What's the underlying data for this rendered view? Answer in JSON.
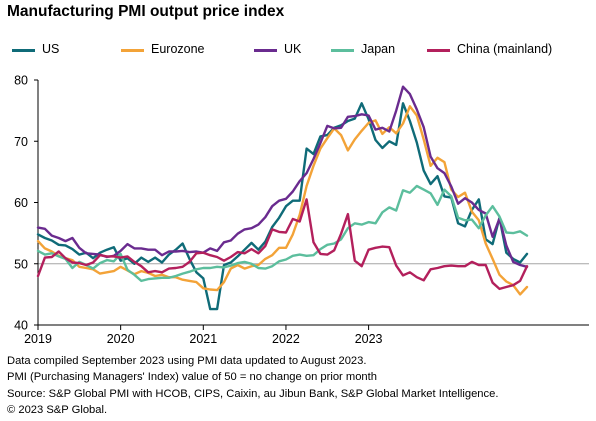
{
  "title": "Manufacturing PMI output price index",
  "notes": [
    "Data compiled September 2023 using PMI data updated to August 2023.",
    "PMI (Purchasing Managers' Index) value of 50 = no change on prior month",
    "Source: S&P Global PMI with HCOB, CIPS, Caixin, au Jibun Bank, S&P Global Market Intelligence.",
    "© 2023 S&P Global."
  ],
  "chart_data": {
    "type": "line",
    "title": "Manufacturing PMI output price index",
    "ylim": [
      40,
      80
    ],
    "yticks": [
      "40",
      "50",
      "60",
      "70",
      "80"
    ],
    "x_start": "2019-01",
    "xticks": [
      "2019",
      "2020",
      "2021",
      "2022",
      "2023"
    ],
    "reference_line": 50,
    "grid": false,
    "legend_position": "top",
    "series": [
      {
        "name": "US",
        "color": "#0f6b78",
        "values": [
          54.8,
          54.2,
          53.8,
          53.1,
          53.0,
          52.4,
          51.5,
          51.8,
          50.9,
          51.8,
          52.3,
          52.7,
          50.5,
          50.9,
          50.0,
          51.0,
          50.3,
          51.0,
          50.2,
          51.5,
          52.3,
          53.3,
          50.8,
          48.6,
          47.6,
          42.6,
          42.6,
          49.8,
          50.2,
          51.2,
          52.3,
          53.4,
          52.3,
          53.6,
          56.0,
          57.5,
          59.4,
          60.3,
          60.3,
          68.8,
          67.9,
          70.8,
          71.0,
          72.2,
          72.6,
          73.3,
          73.7,
          76.2,
          73.6,
          70.2,
          68.9,
          70.0,
          69.4,
          76.2,
          73.3,
          69.8,
          65.2,
          63.0,
          64.3,
          61.0,
          60.8,
          56.6,
          56.1,
          58.8,
          60.5,
          54.0,
          53.2,
          57.5,
          51.8,
          50.8,
          50.2,
          51.6
        ]
      },
      {
        "name": "Eurozone",
        "color": "#f3a338",
        "values": [
          53.7,
          52.5,
          52.0,
          51.3,
          50.9,
          50.6,
          49.5,
          49.3,
          49.1,
          48.4,
          48.6,
          48.8,
          49.5,
          48.9,
          48.3,
          48.8,
          48.5,
          48.0,
          48.2,
          47.8,
          47.8,
          47.4,
          47.2,
          47.0,
          46.0,
          45.8,
          45.7,
          47.0,
          49.2,
          49.8,
          49.2,
          49.6,
          49.8,
          50.8,
          51.4,
          52.6,
          52.6,
          54.8,
          58.0,
          62.7,
          66.0,
          68.8,
          70.5,
          72.1,
          71.0,
          68.5,
          70.3,
          71.7,
          73.0,
          73.4,
          71.2,
          72.3,
          71.3,
          72.9,
          75.7,
          74.2,
          70.3,
          66.0,
          67.3,
          66.6,
          62.1,
          60.9,
          61.6,
          58.5,
          57.1,
          53.3,
          50.8,
          48.2,
          47.1,
          46.5,
          45.0,
          46.2
        ]
      },
      {
        "name": "UK",
        "color": "#6a2b8f",
        "values": [
          55.9,
          55.7,
          54.6,
          54.2,
          53.7,
          54.2,
          52.6,
          51.7,
          51.6,
          51.5,
          51.1,
          51.3,
          52.1,
          53.2,
          52.5,
          52.5,
          52.3,
          52.3,
          51.4,
          52.0,
          52.0,
          52.1,
          51.9,
          52.0,
          51.8,
          52.5,
          52.1,
          53.5,
          53.8,
          54.9,
          55.6,
          55.8,
          56.4,
          57.6,
          59.4,
          60.3,
          60.6,
          61.8,
          63.5,
          64.8,
          67.1,
          69.7,
          72.5,
          72.1,
          72.2,
          74.0,
          74.1,
          74.4,
          74.2,
          71.9,
          72.2,
          71.6,
          75.0,
          78.9,
          77.7,
          75.2,
          72.3,
          67.5,
          65.6,
          64.8,
          62.6,
          59.8,
          60.7,
          60.0,
          58.8,
          58.2,
          54.4,
          57.4,
          53.0,
          50.3,
          49.8,
          49.5
        ]
      },
      {
        "name": "Japan",
        "color": "#5cbe9d",
        "values": [
          52.1,
          51.5,
          51.7,
          51.2,
          50.8,
          49.3,
          50.3,
          49.8,
          49.2,
          50.1,
          50.6,
          50.4,
          51.6,
          49.0,
          48.2,
          47.2,
          47.5,
          47.6,
          47.7,
          47.7,
          48.0,
          48.4,
          48.7,
          49.1,
          49.3,
          49.3,
          49.5,
          49.4,
          49.7,
          50.1,
          50.3,
          50.0,
          49.3,
          49.2,
          49.6,
          50.4,
          50.7,
          51.3,
          51.5,
          51.3,
          51.4,
          52.4,
          53.1,
          53.3,
          54.0,
          55.8,
          56.6,
          56.4,
          56.8,
          56.6,
          58.4,
          59.2,
          58.7,
          62.0,
          61.6,
          62.7,
          62.1,
          61.5,
          59.6,
          62.1,
          61.0,
          57.5,
          57.1,
          57.2,
          55.8,
          57.9,
          59.4,
          57.7,
          55.1,
          55.0,
          55.3,
          54.6
        ]
      },
      {
        "name": "China (mainland)",
        "color": "#b3205c",
        "values": [
          48.0,
          51.0,
          51.1,
          52.0,
          50.9,
          50.2,
          50.1,
          49.8,
          50.2,
          51.4,
          51.2,
          51.2,
          51.0,
          51.2,
          50.3,
          49.6,
          48.6,
          48.8,
          48.6,
          49.2,
          49.3,
          49.5,
          50.3,
          51.7,
          51.8,
          51.4,
          51.1,
          50.5,
          51.1,
          51.9,
          51.7,
          52.4,
          51.7,
          52.9,
          55.6,
          55.2,
          55.1,
          57.3,
          56.9,
          60.5,
          53.5,
          51.6,
          51.5,
          52.2,
          54.9,
          58.1,
          50.5,
          49.6,
          52.3,
          52.6,
          52.8,
          52.7,
          49.7,
          48.1,
          48.6,
          47.8,
          47.3,
          49.1,
          49.3,
          49.6,
          49.7,
          49.6,
          49.6,
          50.3,
          49.8,
          49.8,
          46.9,
          45.9,
          46.2,
          46.5,
          47.2,
          49.6
        ]
      }
    ]
  }
}
